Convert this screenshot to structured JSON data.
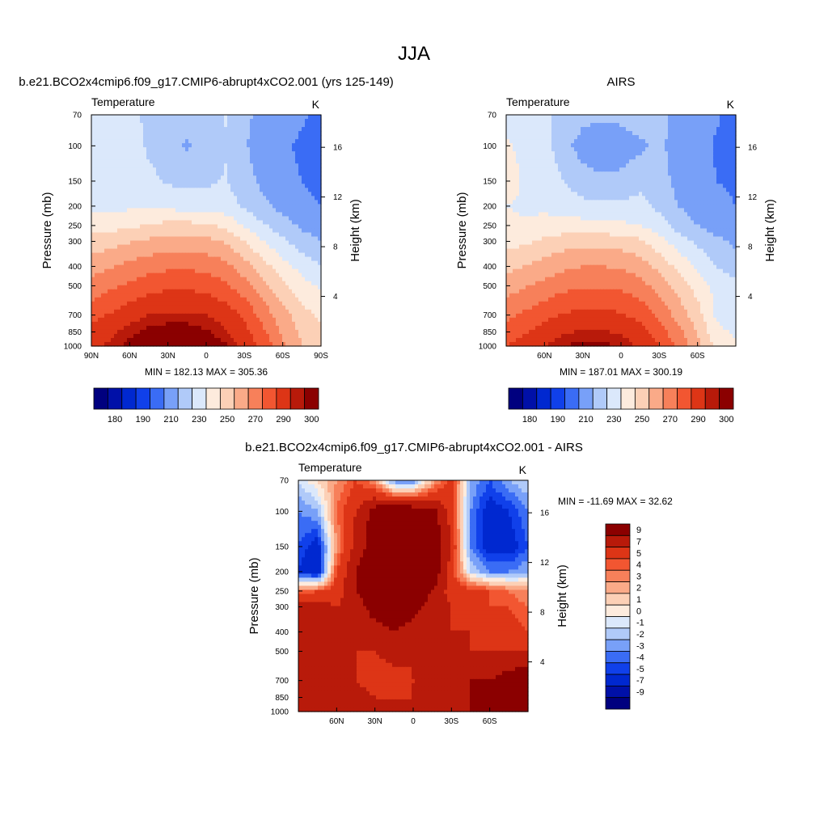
{
  "page_title": "JJA",
  "chart_data": [
    {
      "type": "heatmap",
      "id": "model",
      "title": "b.e21.BCO2x4cmip6.f09_g17.CMIP6-abrupt4xCO2.001 (yrs 125-149)",
      "left_label": "Temperature",
      "right_label": "K",
      "xlabel": "",
      "ylabel": "Pressure (mb)",
      "ylabel_right": "Height (km)",
      "x_ticks": [
        "90N",
        "60N",
        "30N",
        "0",
        "30S",
        "60S",
        "90S"
      ],
      "xlim": [
        90,
        -90
      ],
      "y_ticks": [
        70,
        100,
        150,
        200,
        250,
        300,
        400,
        500,
        700,
        850,
        1000
      ],
      "ylim": [
        1000,
        70
      ],
      "y2_ticks": [
        4,
        8,
        12,
        16
      ],
      "stats": "MIN = 182.13  MAX = 305.36",
      "colorbar": {
        "orientation": "horizontal",
        "levels": [
          175,
          180,
          185,
          190,
          200,
          210,
          220,
          230,
          240,
          250,
          260,
          270,
          280,
          290,
          295,
          300
        ],
        "labels": [
          "180",
          "190",
          "210",
          "230",
          "250",
          "270",
          "290",
          "300"
        ],
        "colors": [
          "#00007f",
          "#0010a8",
          "#0028d0",
          "#1040ea",
          "#3a6cf5",
          "#78a0f8",
          "#b0caf9",
          "#dbe8fb",
          "#fdebdd",
          "#fcd0b6",
          "#faaa88",
          "#f7805a",
          "#f25631",
          "#dd3516",
          "#b81a0a",
          "#8b0000"
        ]
      },
      "series": [
        {
          "pressure": 70,
          "values": [
            224,
            224,
            224,
            217,
            213,
            213,
            215,
            221,
            212,
            207,
            205,
            202,
            195
          ]
        },
        {
          "pressure": 100,
          "values": [
            227,
            227,
            226,
            218,
            213,
            209,
            212,
            219,
            211,
            205,
            202,
            198,
            193
          ]
        },
        {
          "pressure": 150,
          "values": [
            228,
            228,
            227,
            223,
            219,
            217,
            218,
            221,
            214,
            207,
            203,
            200,
            197
          ]
        },
        {
          "pressure": 200,
          "values": [
            228,
            228,
            228,
            228,
            227,
            226,
            225,
            224,
            219,
            212,
            207,
            203,
            200
          ]
        },
        {
          "pressure": 250,
          "values": [
            236,
            236,
            238,
            241,
            243,
            243,
            242,
            238,
            229,
            221,
            214,
            208,
            205
          ]
        },
        {
          "pressure": 300,
          "values": [
            244,
            246,
            249,
            252,
            254,
            254,
            253,
            249,
            240,
            230,
            222,
            215,
            210
          ]
        },
        {
          "pressure": 400,
          "values": [
            256,
            259,
            263,
            266,
            268,
            268,
            267,
            263,
            254,
            244,
            234,
            226,
            220
          ]
        },
        {
          "pressure": 500,
          "values": [
            264,
            268,
            272,
            276,
            278,
            278,
            277,
            272,
            264,
            253,
            243,
            234,
            228
          ]
        },
        {
          "pressure": 700,
          "values": [
            276,
            281,
            286,
            290,
            291,
            291,
            290,
            286,
            278,
            266,
            254,
            244,
            238
          ]
        },
        {
          "pressure": 850,
          "values": [
            283,
            288,
            293,
            297,
            299,
            299,
            296,
            291,
            283,
            272,
            258,
            248,
            242
          ]
        },
        {
          "pressure": 1000,
          "values": [
            288,
            292,
            298,
            303,
            305,
            304,
            301,
            296,
            288,
            277,
            262,
            250,
            245
          ]
        }
      ]
    },
    {
      "type": "heatmap",
      "id": "obs",
      "title": "AIRS",
      "left_label": "Temperature",
      "right_label": "K",
      "xlabel": "",
      "ylabel": "Pressure (mb)",
      "ylabel_right": "Height (km)",
      "x_ticks": [
        "60N",
        "30N",
        "0",
        "30S",
        "60S"
      ],
      "xlim": [
        90,
        -90
      ],
      "y_ticks": [
        70,
        100,
        150,
        200,
        250,
        300,
        400,
        500,
        700,
        850,
        1000
      ],
      "ylim": [
        1000,
        70
      ],
      "y2_ticks": [
        4,
        8,
        12,
        16
      ],
      "stats": "MIN = 187.01  MAX = 300.19",
      "colorbar": {
        "orientation": "horizontal",
        "levels": [
          175,
          180,
          185,
          190,
          200,
          210,
          220,
          230,
          240,
          250,
          260,
          270,
          280,
          290,
          295,
          300
        ],
        "labels": [
          "180",
          "190",
          "210",
          "230",
          "250",
          "270",
          "290",
          "300"
        ],
        "colors": [
          "#00007f",
          "#0010a8",
          "#0028d0",
          "#1040ea",
          "#3a6cf5",
          "#78a0f8",
          "#b0caf9",
          "#dbe8fb",
          "#fdebdd",
          "#fcd0b6",
          "#faaa88",
          "#f7805a",
          "#f25631",
          "#dd3516",
          "#b81a0a",
          "#8b0000"
        ]
      },
      "series": [
        {
          "pressure": 70,
          "values": [
            226,
            225,
            222,
            217,
            213,
            212,
            213,
            216,
            213,
            207,
            204,
            201,
            197
          ]
        },
        {
          "pressure": 100,
          "values": [
            231,
            228,
            224,
            213,
            206,
            203,
            204,
            208,
            212,
            206,
            203,
            199,
            196
          ]
        },
        {
          "pressure": 150,
          "values": [
            233,
            229,
            227,
            220,
            214,
            212,
            213,
            217,
            214,
            207,
            203,
            200,
            198
          ]
        },
        {
          "pressure": 200,
          "values": [
            230,
            229,
            228,
            226,
            223,
            222,
            222,
            223,
            218,
            210,
            206,
            203,
            200
          ]
        },
        {
          "pressure": 250,
          "values": [
            231,
            231,
            233,
            234,
            234,
            233,
            232,
            230,
            224,
            216,
            210,
            206,
            204
          ]
        },
        {
          "pressure": 300,
          "values": [
            236,
            238,
            242,
            245,
            246,
            246,
            245,
            242,
            234,
            225,
            218,
            212,
            208
          ]
        },
        {
          "pressure": 400,
          "values": [
            247,
            250,
            254,
            258,
            260,
            260,
            259,
            255,
            247,
            237,
            228,
            220,
            215
          ]
        },
        {
          "pressure": 500,
          "values": [
            255,
            259,
            263,
            267,
            269,
            269,
            268,
            264,
            256,
            246,
            236,
            227,
            222
          ]
        },
        {
          "pressure": 700,
          "values": [
            267,
            272,
            277,
            281,
            283,
            283,
            281,
            277,
            268,
            256,
            244,
            228,
            224
          ]
        },
        {
          "pressure": 850,
          "values": [
            274,
            279,
            284,
            289,
            291,
            291,
            289,
            284,
            275,
            263,
            249,
            233,
            228
          ]
        },
        {
          "pressure": 1000,
          "values": [
            280,
            285,
            290,
            295,
            297,
            297,
            294,
            289,
            280,
            268,
            254,
            236,
            231
          ]
        }
      ]
    },
    {
      "type": "heatmap",
      "id": "diff",
      "title": "b.e21.BCO2x4cmip6.f09_g17.CMIP6-abrupt4xCO2.001 - AIRS",
      "left_label": "Temperature",
      "right_label": "K",
      "xlabel": "",
      "ylabel": "Pressure (mb)",
      "ylabel_right": "Height (km)",
      "x_ticks": [
        "60N",
        "30N",
        "0",
        "30S",
        "60S"
      ],
      "xlim": [
        90,
        -90
      ],
      "y_ticks": [
        70,
        100,
        150,
        200,
        250,
        300,
        400,
        500,
        700,
        850,
        1000
      ],
      "ylim": [
        1000,
        70
      ],
      "y2_ticks": [
        4,
        8,
        12,
        16
      ],
      "stats": "MIN = -11.69  MAX =  32.62",
      "colorbar": {
        "orientation": "vertical",
        "levels": [
          -9,
          -7,
          -5,
          -4,
          -3,
          -2,
          -1,
          0,
          1,
          2,
          3,
          4,
          5,
          7,
          9
        ],
        "labels": [
          "-9",
          "-7",
          "-5",
          "-4",
          "-3",
          "-2",
          "-1",
          "0",
          "1",
          "2",
          "3",
          "4",
          "5",
          "7",
          "9"
        ],
        "colors": [
          "#00007f",
          "#0010a8",
          "#0028d0",
          "#1040ea",
          "#3a6cf5",
          "#78a0f8",
          "#b0caf9",
          "#dbe8fb",
          "#fdebdd",
          "#fcd0b6",
          "#faaa88",
          "#f7805a",
          "#f25631",
          "#dd3516",
          "#b81a0a",
          "#8b0000"
        ]
      },
      "series": [
        {
          "pressure": 70,
          "values": [
            -1,
            1,
            3,
            5,
            3,
            -3,
            -3,
            2,
            6,
            -2,
            -4,
            -2,
            -1
          ]
        },
        {
          "pressure": 100,
          "values": [
            -3,
            -2,
            4,
            7,
            10,
            12,
            11,
            10,
            6,
            -3,
            -6,
            -5,
            -3
          ]
        },
        {
          "pressure": 150,
          "values": [
            -4,
            -6,
            3,
            8,
            10,
            13,
            12,
            11,
            7,
            -3,
            -6,
            -6,
            -4
          ]
        },
        {
          "pressure": 200,
          "values": [
            -5,
            -7,
            5,
            9,
            11,
            13,
            12,
            11,
            6,
            -1,
            -3,
            -3,
            -2
          ]
        },
        {
          "pressure": 250,
          "values": [
            4,
            5,
            6,
            9,
            10,
            12,
            11,
            9,
            6,
            6,
            5,
            4,
            3
          ]
        },
        {
          "pressure": 300,
          "values": [
            8,
            8,
            7,
            8,
            10,
            11,
            10,
            8,
            7,
            6,
            5,
            5,
            4
          ]
        },
        {
          "pressure": 400,
          "values": [
            9,
            9,
            8,
            8,
            8,
            9,
            8,
            7,
            7,
            7,
            6,
            6,
            5
          ]
        },
        {
          "pressure": 500,
          "values": [
            8,
            8,
            8,
            7,
            7,
            8,
            7,
            7,
            7,
            7,
            7,
            7,
            7
          ]
        },
        {
          "pressure": 700,
          "values": [
            8,
            8,
            8,
            7,
            6,
            6,
            7,
            8,
            8,
            9,
            9,
            10,
            11
          ]
        },
        {
          "pressure": 850,
          "values": [
            8,
            8,
            8,
            8,
            7,
            7,
            7,
            7,
            8,
            9,
            10,
            12,
            12
          ]
        },
        {
          "pressure": 1000,
          "values": [
            8,
            8,
            8,
            8,
            7,
            7,
            7,
            7,
            8,
            9,
            10,
            12,
            12
          ]
        }
      ]
    }
  ]
}
